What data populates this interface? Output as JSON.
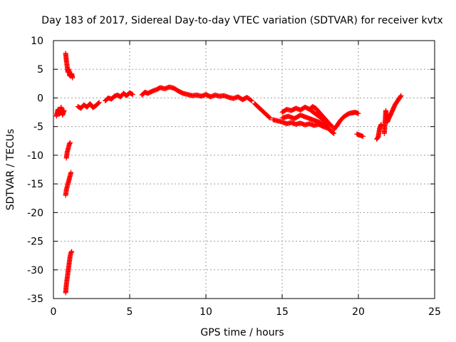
{
  "chart_data": {
    "type": "scatter",
    "title": "Day 183 of 2017, Sidereal Day-to-day VTEC variation (SDTVAR) for receiver kvtx",
    "xlabel": "GPS time / hours",
    "ylabel": "SDTVAR / TECUs",
    "xlim": [
      0,
      25
    ],
    "ylim": [
      -35,
      10
    ],
    "xticks": [
      0,
      5,
      10,
      15,
      20,
      25
    ],
    "yticks": [
      10,
      5,
      0,
      -5,
      -10,
      -15,
      -20,
      -25,
      -30,
      -35
    ],
    "grid": true,
    "marker": "+",
    "color": "#ff0000",
    "series": [
      {
        "name": "sdtvar",
        "segments": [
          [
            [
              0.2,
              -3.2
            ],
            [
              0.3,
              -2.0
            ],
            [
              0.4,
              -2.8
            ],
            [
              0.5,
              -1.6
            ],
            [
              0.6,
              -3.0
            ],
            [
              0.7,
              -2.2
            ]
          ],
          [
            [
              0.8,
              7.8
            ],
            [
              0.85,
              6.5
            ],
            [
              0.9,
              5.5
            ],
            [
              0.95,
              4.5
            ],
            [
              1.0,
              5.0
            ],
            [
              1.05,
              4.0
            ],
            [
              1.1,
              3.8
            ],
            [
              1.2,
              4.2
            ],
            [
              1.25,
              3.5
            ]
          ],
          [
            [
              0.85,
              -10.5
            ],
            [
              0.9,
              -9.5
            ],
            [
              0.95,
              -9.0
            ],
            [
              1.0,
              -8.5
            ],
            [
              1.05,
              -8.0
            ],
            [
              1.1,
              -7.8
            ]
          ],
          [
            [
              0.8,
              -17.0
            ],
            [
              0.85,
              -16.0
            ],
            [
              0.9,
              -15.5
            ],
            [
              0.95,
              -15.0
            ],
            [
              1.0,
              -14.5
            ],
            [
              1.05,
              -14.0
            ],
            [
              1.1,
              -13.5
            ],
            [
              1.15,
              -13.0
            ]
          ],
          [
            [
              0.8,
              -34.0
            ],
            [
              0.85,
              -32.5
            ],
            [
              0.9,
              -31.5
            ],
            [
              0.95,
              -30.5
            ],
            [
              1.0,
              -29.5
            ],
            [
              1.05,
              -28.5
            ],
            [
              1.1,
              -27.5
            ],
            [
              1.15,
              -27.0
            ],
            [
              1.2,
              -26.8
            ]
          ],
          [
            [
              1.6,
              -1.5
            ],
            [
              1.8,
              -1.8
            ],
            [
              2.0,
              -1.2
            ],
            [
              2.2,
              -1.6
            ],
            [
              2.4,
              -1.0
            ],
            [
              2.6,
              -1.7
            ],
            [
              2.8,
              -1.3
            ],
            [
              3.0,
              -0.8
            ]
          ],
          [
            [
              3.4,
              -0.5
            ],
            [
              3.6,
              0.0
            ],
            [
              3.8,
              -0.2
            ],
            [
              4.0,
              0.3
            ],
            [
              4.2,
              0.5
            ],
            [
              4.4,
              0.2
            ],
            [
              4.6,
              0.8
            ],
            [
              4.8,
              0.4
            ],
            [
              5.0,
              0.9
            ],
            [
              5.2,
              0.6
            ]
          ],
          [
            [
              5.8,
              0.5
            ],
            [
              6.0,
              1.0
            ],
            [
              6.2,
              0.8
            ],
            [
              6.5,
              1.2
            ],
            [
              6.8,
              1.5
            ],
            [
              7.0,
              1.8
            ],
            [
              7.3,
              1.6
            ],
            [
              7.6,
              1.9
            ],
            [
              7.9,
              1.7
            ],
            [
              8.2,
              1.2
            ],
            [
              8.5,
              0.8
            ],
            [
              8.8,
              0.6
            ],
            [
              9.1,
              0.4
            ],
            [
              9.4,
              0.5
            ],
            [
              9.7,
              0.3
            ],
            [
              10.0,
              0.6
            ],
            [
              10.3,
              0.2
            ],
            [
              10.6,
              0.5
            ],
            [
              10.9,
              0.3
            ],
            [
              11.2,
              0.4
            ],
            [
              11.5,
              0.1
            ],
            [
              11.8,
              -0.1
            ],
            [
              12.1,
              0.2
            ],
            [
              12.4,
              -0.3
            ],
            [
              12.7,
              0.1
            ],
            [
              13.0,
              -0.5
            ]
          ],
          [
            [
              13.2,
              -1.0
            ],
            [
              13.4,
              -1.5
            ],
            [
              13.6,
              -2.0
            ],
            [
              13.8,
              -2.5
            ],
            [
              14.0,
              -3.0
            ],
            [
              14.2,
              -3.5
            ]
          ],
          [
            [
              14.4,
              -3.8
            ],
            [
              14.7,
              -4.0
            ],
            [
              15.0,
              -4.2
            ],
            [
              15.3,
              -4.5
            ],
            [
              15.6,
              -4.3
            ],
            [
              15.9,
              -4.6
            ],
            [
              16.2,
              -4.4
            ],
            [
              16.5,
              -4.7
            ],
            [
              16.8,
              -4.5
            ],
            [
              17.1,
              -4.8
            ],
            [
              17.4,
              -4.6
            ],
            [
              17.7,
              -5.0
            ],
            [
              18.0,
              -5.3
            ]
          ],
          [
            [
              15.0,
              -2.5
            ],
            [
              15.3,
              -2.0
            ],
            [
              15.6,
              -2.2
            ],
            [
              15.9,
              -1.8
            ],
            [
              16.2,
              -2.1
            ],
            [
              16.5,
              -1.6
            ],
            [
              16.8,
              -2.0
            ],
            [
              17.1,
              -2.6
            ],
            [
              17.4,
              -3.2
            ],
            [
              17.7,
              -3.8
            ],
            [
              18.0,
              -4.3
            ],
            [
              18.3,
              -5.0
            ]
          ],
          [
            [
              15.0,
              -3.5
            ],
            [
              15.4,
              -3.2
            ],
            [
              15.8,
              -3.6
            ],
            [
              16.2,
              -3.0
            ],
            [
              16.6,
              -3.4
            ],
            [
              17.0,
              -3.8
            ],
            [
              17.4,
              -4.2
            ],
            [
              17.8,
              -4.6
            ],
            [
              18.2,
              -5.8
            ],
            [
              18.4,
              -6.2
            ]
          ],
          [
            [
              16.8,
              -2.0
            ],
            [
              17.0,
              -1.5
            ],
            [
              17.2,
              -1.8
            ],
            [
              17.4,
              -2.4
            ],
            [
              17.6,
              -3.0
            ],
            [
              17.8,
              -3.6
            ],
            [
              18.0,
              -4.2
            ]
          ],
          [
            [
              18.4,
              -5.5
            ],
            [
              18.6,
              -4.8
            ],
            [
              18.8,
              -4.0
            ],
            [
              19.0,
              -3.4
            ],
            [
              19.2,
              -3.0
            ],
            [
              19.4,
              -2.7
            ],
            [
              19.6,
              -2.6
            ],
            [
              19.8,
              -2.5
            ],
            [
              20.0,
              -2.7
            ]
          ],
          [
            [
              19.9,
              -6.3
            ],
            [
              20.1,
              -6.5
            ],
            [
              20.3,
              -6.7
            ]
          ],
          [
            [
              21.2,
              -7.2
            ],
            [
              21.3,
              -6.8
            ],
            [
              21.4,
              -5.2
            ],
            [
              21.5,
              -4.6
            ]
          ],
          [
            [
              21.7,
              -6.2
            ],
            [
              21.8,
              -2.2
            ],
            [
              21.9,
              -4.2
            ],
            [
              22.0,
              -3.5
            ],
            [
              22.1,
              -3.0
            ],
            [
              22.2,
              -2.4
            ],
            [
              22.3,
              -1.8
            ],
            [
              22.4,
              -1.2
            ],
            [
              22.5,
              -0.8
            ],
            [
              22.6,
              -0.4
            ],
            [
              22.7,
              0.0
            ],
            [
              22.8,
              0.4
            ]
          ]
        ]
      }
    ]
  }
}
